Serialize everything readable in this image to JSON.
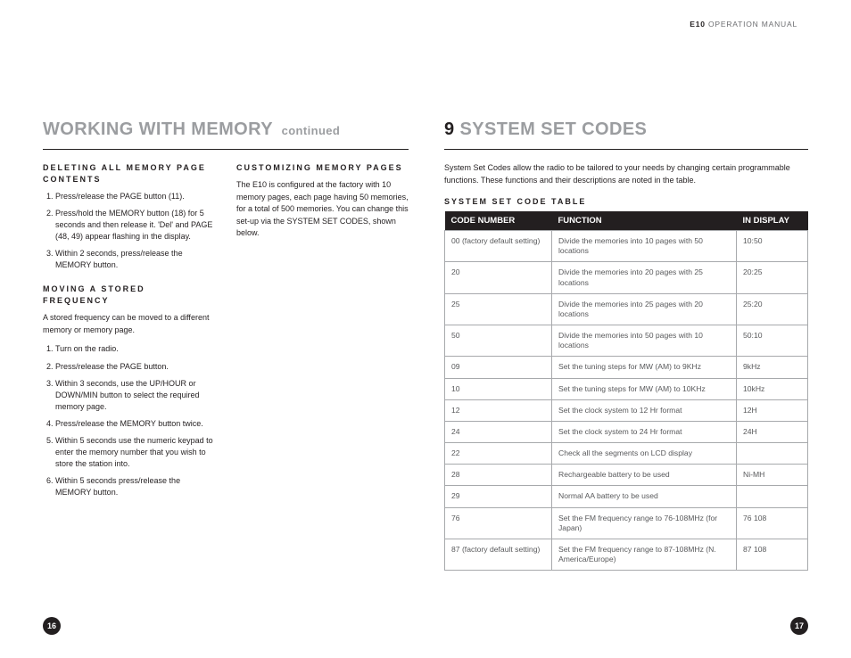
{
  "header": {
    "brand": "E10",
    "label": "OPERATION MANUAL"
  },
  "left": {
    "title_main": "WORKING WITH MEMORY",
    "title_suffix": "continued",
    "section1_title": "DELETING ALL MEMORY PAGE CONTENTS",
    "section1_items": [
      "Press/release the PAGE button (11).",
      "Press/hold the MEMORY button (18) for 5 seconds and then release it. 'Del' and PAGE (48, 49) appear flashing in the display.",
      "Within 2 seconds, press/release the MEMORY button."
    ],
    "section2_title": "MOVING A STORED FREQUENCY",
    "section2_intro": "A stored frequency can be moved to a different memory or memory page.",
    "section2_items": [
      "Turn on the radio.",
      "Press/release the PAGE button.",
      "Within 3 seconds, use the UP/HOUR or DOWN/MIN button to select the required memory page.",
      "Press/release the MEMORY button twice.",
      "Within 5 seconds use the numeric keypad to enter the memory number that you wish to store the station into.",
      "Within 5 seconds press/release the MEMORY button."
    ],
    "section3_title": "CUSTOMIZING MEMORY PAGES",
    "section3_body": "The E10 is configured at the factory with 10 memory pages, each page having 50 memories, for a total of 500 memories. You can change this set-up via the SYSTEM SET CODES, shown below."
  },
  "right": {
    "title_num": "9",
    "title_main": "SYSTEM SET CODES",
    "intro": "System Set Codes allow the radio to be tailored to your needs by changing certain programmable functions. These functions and their descriptions are noted in the table.",
    "table_title": "SYSTEM SET CODE TABLE",
    "columns": [
      "CODE NUMBER",
      "FUNCTION",
      "IN DISPLAY"
    ],
    "rows": [
      [
        "00 (factory default setting)",
        "Divide the memories into 10 pages with 50 locations",
        "10:50"
      ],
      [
        "20",
        "Divide the memories into 20 pages with 25 locations",
        "20:25"
      ],
      [
        "25",
        "Divide the memories into 25 pages with 20 locations",
        "25:20"
      ],
      [
        "50",
        "Divide the memories into 50 pages with 10 locations",
        "50:10"
      ],
      [
        "09",
        "Set the tuning steps for MW (AM) to 9KHz",
        "9kHz"
      ],
      [
        "10",
        "Set the tuning steps for MW (AM) to 10KHz",
        "10kHz"
      ],
      [
        "12",
        "Set the clock system to 12 Hr format",
        "12H"
      ],
      [
        "24",
        "Set the clock system to 24 Hr format",
        "24H"
      ],
      [
        "22",
        "Check all the segments on LCD display",
        ""
      ],
      [
        "28",
        "Rechargeable battery to be used",
        "Ni-MH"
      ],
      [
        "29",
        "Normal AA battery to be used",
        ""
      ],
      [
        "76",
        "Set the FM frequency range to 76-108MHz (for Japan)",
        "76 108"
      ],
      [
        "87 (factory default setting)",
        "Set the FM frequency range to 87-108MHz (N. America/Europe)",
        "87 108"
      ]
    ]
  },
  "page_left": "16",
  "page_right": "17"
}
